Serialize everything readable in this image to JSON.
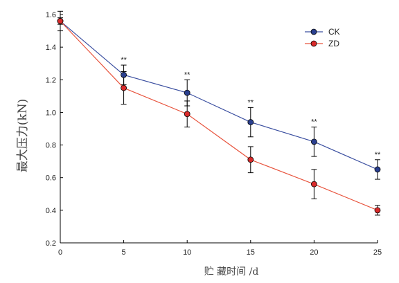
{
  "chart_data": {
    "type": "line",
    "title": "",
    "xlabel": "贮 藏时间 /d",
    "ylabel": "最大压力(kN)",
    "x": [
      0,
      5,
      10,
      15,
      20,
      25
    ],
    "xlim": [
      0,
      25
    ],
    "ylim": [
      0.2,
      1.6
    ],
    "xticks": [
      "0",
      "5",
      "10",
      "15",
      "20",
      "25"
    ],
    "yticks": [
      "0.2",
      "0.4",
      "0.6",
      "0.8",
      "1.0",
      "1.2",
      "1.4",
      "1.6"
    ],
    "grid": false,
    "legend_position": "top-right",
    "series": [
      {
        "name": "CK",
        "color": "#3b4fa0",
        "marker_fill": "#2a3f8f",
        "values": [
          1.56,
          1.23,
          1.12,
          0.94,
          0.82,
          0.65
        ],
        "errors": [
          0.06,
          0.06,
          0.08,
          0.09,
          0.09,
          0.06
        ]
      },
      {
        "name": "ZD",
        "color": "#e8553f",
        "marker_fill": "#d92a2a",
        "values": [
          1.56,
          1.15,
          0.99,
          0.71,
          0.56,
          0.4
        ],
        "errors": [
          0.02,
          0.1,
          0.08,
          0.08,
          0.09,
          0.03
        ]
      }
    ],
    "annotations": [
      {
        "x": 5,
        "text": "**"
      },
      {
        "x": 10,
        "text": "**"
      },
      {
        "x": 15,
        "text": "**"
      },
      {
        "x": 20,
        "text": "**"
      },
      {
        "x": 25,
        "text": "**"
      }
    ]
  }
}
